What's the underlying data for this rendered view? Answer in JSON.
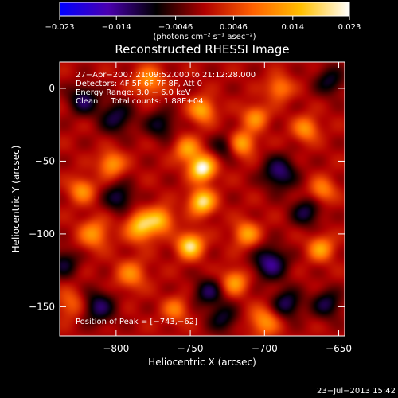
{
  "chart_data": {
    "type": "heatmap",
    "title": "Reconstructed RHESSI Image",
    "xlabel": "Heliocentric X (arcsec)",
    "ylabel": "Heliocentric Y (arcsec)",
    "xlim": [
      -838,
      -646
    ],
    "ylim": [
      -170,
      18
    ],
    "x_ticks": [
      -800,
      -750,
      -700,
      -650
    ],
    "x_tick_labels": [
      "−800",
      "−750",
      "−700",
      "−650"
    ],
    "y_ticks": [
      0,
      -50,
      -100,
      -150
    ],
    "y_tick_labels": [
      "0",
      "−50",
      "−100",
      "−150"
    ],
    "colorbar": {
      "min": -0.023,
      "max": 0.023,
      "ticks": [
        -0.023,
        -0.014,
        -0.0046,
        0.0046,
        0.014,
        0.023
      ],
      "tick_labels": [
        "−0.023",
        "−0.014",
        "−0.0046",
        "0.0046",
        "0.014",
        "0.023"
      ],
      "unit_label": "(photons cm⁻² s⁻¹ asec⁻²)",
      "colors": [
        "#0000ff",
        "#4a00b0",
        "#000000",
        "#b00000",
        "#ff6000",
        "#ffc000",
        "#ffffff"
      ]
    },
    "annotations": [
      "27−Apr−2007 21:09:52.000 to 21:12:28.000",
      "Detectors: 4F 5F 6F 7F 8F, Att 0",
      "Energy Range: 3.0 − 6.0 keV",
      "Clean     Total counts: 1.88E+04"
    ],
    "peak_label": "Position of Peak = [−743,−62]",
    "peak": [
      -743,
      -62
    ],
    "timestamp": "23−Jul−2013 15:42",
    "blobs": [
      {
        "x": -742,
        "y": -55,
        "v": 1.0,
        "s": 6
      },
      {
        "x": -742,
        "y": -78,
        "v": 0.85,
        "s": 6
      },
      {
        "x": -750,
        "y": -108,
        "v": 0.85,
        "s": 6
      },
      {
        "x": -752,
        "y": -42,
        "v": 0.55,
        "s": 6
      },
      {
        "x": -783,
        "y": -95,
        "v": 0.75,
        "s": 7
      },
      {
        "x": -770,
        "y": -90,
        "v": 0.6,
        "s": 6
      },
      {
        "x": -803,
        "y": -52,
        "v": 0.55,
        "s": 6
      },
      {
        "x": -815,
        "y": -100,
        "v": 0.5,
        "s": 7
      },
      {
        "x": -823,
        "y": -70,
        "v": 0.5,
        "s": 6
      },
      {
        "x": -790,
        "y": -128,
        "v": 0.45,
        "s": 7
      },
      {
        "x": -712,
        "y": -100,
        "v": 0.55,
        "s": 6
      },
      {
        "x": -715,
        "y": -38,
        "v": 0.6,
        "s": 6
      },
      {
        "x": -706,
        "y": -20,
        "v": 0.5,
        "s": 6
      },
      {
        "x": -742,
        "y": -15,
        "v": 0.6,
        "s": 6
      },
      {
        "x": -720,
        "y": -133,
        "v": 0.55,
        "s": 6
      },
      {
        "x": -700,
        "y": -160,
        "v": 0.5,
        "s": 7
      },
      {
        "x": -662,
        "y": -110,
        "v": 0.55,
        "s": 6
      },
      {
        "x": -672,
        "y": -28,
        "v": 0.5,
        "s": 6
      },
      {
        "x": -661,
        "y": -70,
        "v": 0.45,
        "s": 6
      },
      {
        "x": -778,
        "y": 5,
        "v": 0.5,
        "s": 7
      },
      {
        "x": -690,
        "y": 0,
        "v": 0.45,
        "s": 6
      },
      {
        "x": -760,
        "y": -152,
        "v": 0.4,
        "s": 6
      },
      {
        "x": -830,
        "y": -148,
        "v": 0.35,
        "s": 7
      },
      {
        "x": -800,
        "y": -20,
        "v": -0.45,
        "s": 8
      },
      {
        "x": -822,
        "y": -8,
        "v": -0.5,
        "s": 7
      },
      {
        "x": -770,
        "y": -25,
        "v": -0.4,
        "s": 7
      },
      {
        "x": -798,
        "y": -75,
        "v": -0.45,
        "s": 7
      },
      {
        "x": -690,
        "y": -58,
        "v": -0.55,
        "s": 8
      },
      {
        "x": -672,
        "y": -85,
        "v": -0.45,
        "s": 7
      },
      {
        "x": -696,
        "y": -120,
        "v": -0.6,
        "s": 8
      },
      {
        "x": -685,
        "y": -148,
        "v": -0.5,
        "s": 7
      },
      {
        "x": -738,
        "y": -140,
        "v": -0.45,
        "s": 7
      },
      {
        "x": -728,
        "y": -158,
        "v": -0.4,
        "s": 7
      },
      {
        "x": -812,
        "y": -150,
        "v": -0.5,
        "s": 8
      },
      {
        "x": -835,
        "y": -120,
        "v": -0.4,
        "s": 7
      },
      {
        "x": -727,
        "y": -40,
        "v": -0.35,
        "s": 6
      },
      {
        "x": -658,
        "y": -148,
        "v": -0.45,
        "s": 7
      },
      {
        "x": -656,
        "y": 5,
        "v": -0.4,
        "s": 7
      }
    ]
  }
}
